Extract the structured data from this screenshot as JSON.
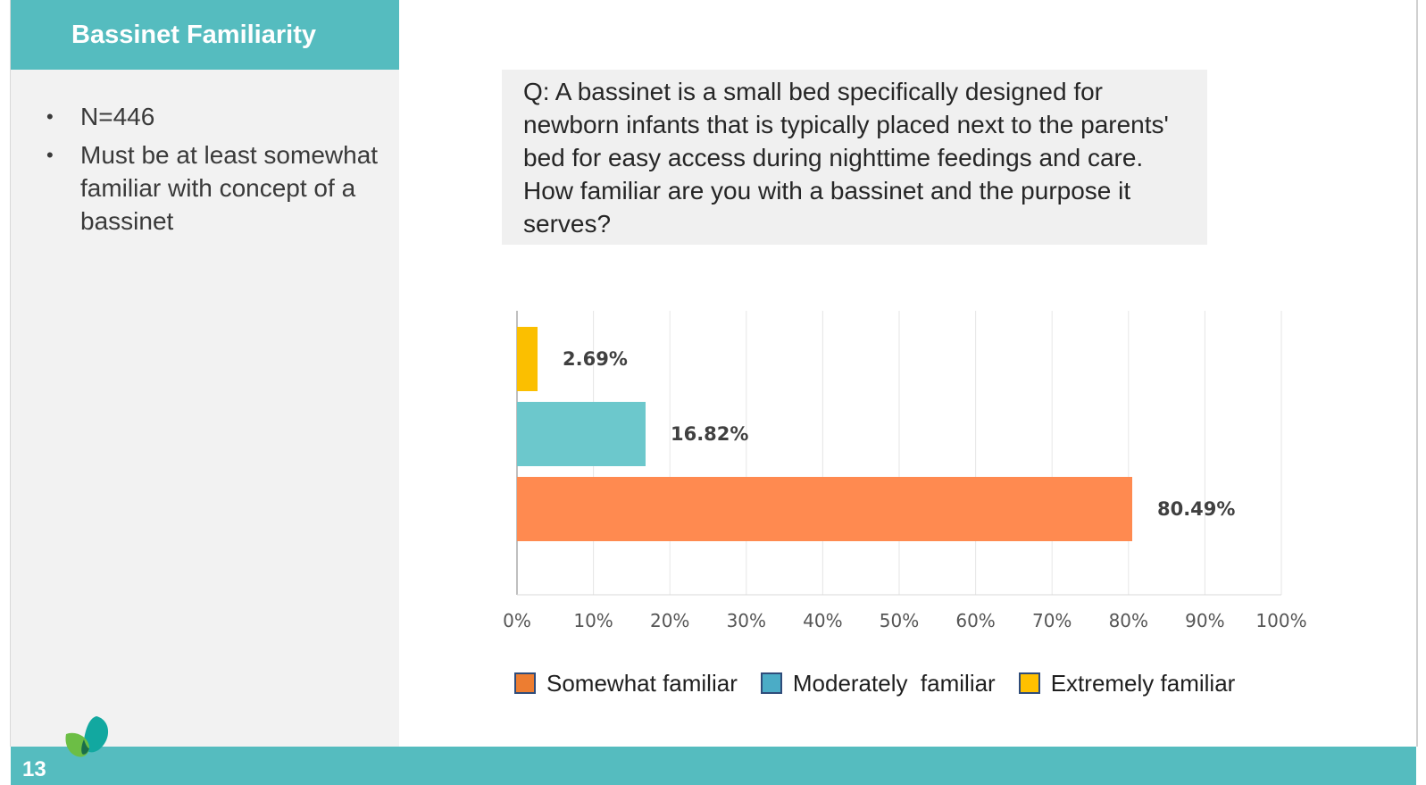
{
  "slide": {
    "title": "Bassinet Familiarity",
    "bullets": [
      "N=446",
      "Must be at least somewhat familiar with concept of a bassinet"
    ],
    "question": "Q: A bassinet is a small bed specifically designed for newborn infants that is typically placed next to the parents' bed for easy access during nighttime feedings and care. How familiar are you with a bassinet and the purpose it serves?",
    "page_number": "13"
  },
  "colors": {
    "teal_header": "#55bcbf",
    "somewhat": "#ff8a50",
    "moderately": "#6cc8cc",
    "extremely": "#fbbf00"
  },
  "chart_data": {
    "type": "bar",
    "orientation": "horizontal",
    "categories": [
      "Extremely familiar",
      "Moderately  familiar",
      "Somewhat familiar"
    ],
    "values": [
      2.69,
      16.82,
      80.49
    ],
    "value_labels": [
      "2.69%",
      "16.82%",
      "80.49%"
    ],
    "colors": [
      "#fbbf00",
      "#6cc8cc",
      "#ff8a50"
    ],
    "xlim": [
      0,
      100
    ],
    "xticks": [
      "0%",
      "10%",
      "20%",
      "30%",
      "40%",
      "50%",
      "60%",
      "70%",
      "80%",
      "90%",
      "100%"
    ],
    "grid": true,
    "legend": [
      {
        "label": "Somewhat familiar",
        "color": "#ed7d31"
      },
      {
        "label": "Moderately  familiar",
        "color": "#4bacc6"
      },
      {
        "label": "Extremely familiar",
        "color": "#ffc000"
      }
    ],
    "legend_position": "bottom"
  }
}
